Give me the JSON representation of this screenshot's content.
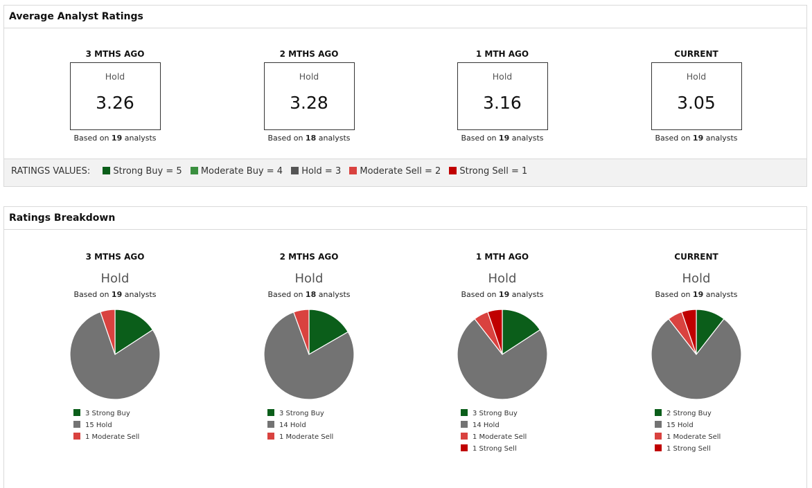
{
  "average_panel": {
    "title": "Average Analyst Ratings",
    "based_prefix": "Based on",
    "based_suffix": "analysts",
    "columns": [
      {
        "label": "3 MTHS AGO",
        "rating_word": "Hold",
        "score": "3.26",
        "analysts": "19"
      },
      {
        "label": "2 MTHS AGO",
        "rating_word": "Hold",
        "score": "3.28",
        "analysts": "18"
      },
      {
        "label": "1 MTH AGO",
        "rating_word": "Hold",
        "score": "3.16",
        "analysts": "19"
      },
      {
        "label": "CURRENT",
        "rating_word": "Hold",
        "score": "3.05",
        "analysts": "19"
      }
    ],
    "ratings_values": {
      "title": "RATINGS VALUES:",
      "items": [
        {
          "label": "Strong Buy = 5",
          "color": "#0b5e1a"
        },
        {
          "label": "Moderate Buy = 4",
          "color": "#3a8f3f"
        },
        {
          "label": "Hold = 3",
          "color": "#555555"
        },
        {
          "label": "Moderate Sell = 2",
          "color": "#d9423f"
        },
        {
          "label": "Strong Sell = 1",
          "color": "#c00000"
        }
      ]
    }
  },
  "breakdown_panel": {
    "title": "Ratings Breakdown",
    "based_prefix": "Based on",
    "based_suffix": "analysts"
  },
  "colors": {
    "Strong Buy": "#0b5e1a",
    "Hold": "#737373",
    "Moderate Sell": "#d9423f",
    "Strong Sell": "#c00000"
  },
  "chart_data": [
    {
      "type": "pie",
      "title": "3 MTHS AGO",
      "subtitle": "Hold",
      "analysts": "19",
      "slices": [
        {
          "label": "Strong Buy",
          "value": 3,
          "legend": "3 Strong Buy"
        },
        {
          "label": "Hold",
          "value": 15,
          "legend": "15 Hold"
        },
        {
          "label": "Moderate Sell",
          "value": 1,
          "legend": "1 Moderate Sell"
        }
      ]
    },
    {
      "type": "pie",
      "title": "2 MTHS AGO",
      "subtitle": "Hold",
      "analysts": "18",
      "slices": [
        {
          "label": "Strong Buy",
          "value": 3,
          "legend": "3 Strong Buy"
        },
        {
          "label": "Hold",
          "value": 14,
          "legend": "14 Hold"
        },
        {
          "label": "Moderate Sell",
          "value": 1,
          "legend": "1 Moderate Sell"
        }
      ]
    },
    {
      "type": "pie",
      "title": "1 MTH AGO",
      "subtitle": "Hold",
      "analysts": "19",
      "slices": [
        {
          "label": "Strong Buy",
          "value": 3,
          "legend": "3 Strong Buy"
        },
        {
          "label": "Hold",
          "value": 14,
          "legend": "14 Hold"
        },
        {
          "label": "Moderate Sell",
          "value": 1,
          "legend": "1 Moderate Sell"
        },
        {
          "label": "Strong Sell",
          "value": 1,
          "legend": "1 Strong Sell"
        }
      ]
    },
    {
      "type": "pie",
      "title": "CURRENT",
      "subtitle": "Hold",
      "analysts": "19",
      "slices": [
        {
          "label": "Strong Buy",
          "value": 2,
          "legend": "2 Strong Buy"
        },
        {
          "label": "Hold",
          "value": 15,
          "legend": "15 Hold"
        },
        {
          "label": "Moderate Sell",
          "value": 1,
          "legend": "1 Moderate Sell"
        },
        {
          "label": "Strong Sell",
          "value": 1,
          "legend": "1 Strong Sell"
        }
      ]
    }
  ]
}
